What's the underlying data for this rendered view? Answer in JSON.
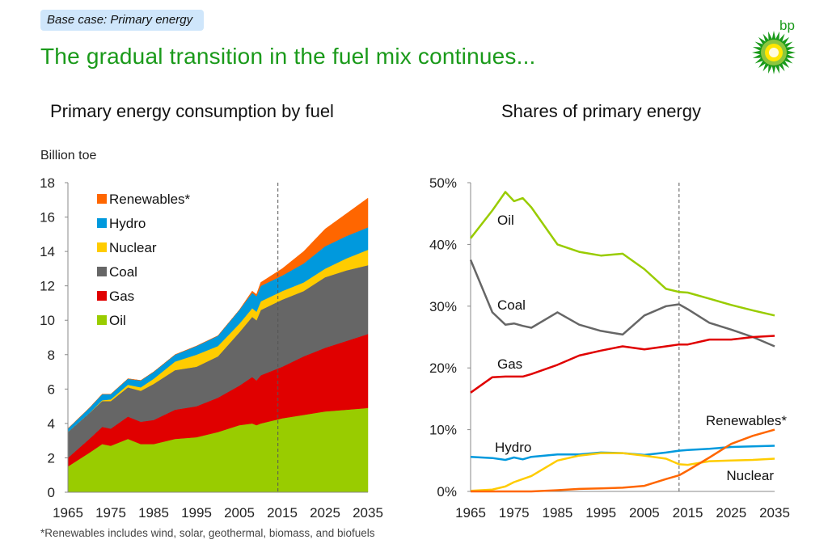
{
  "header": {
    "badge": "Base case: Primary energy",
    "title": "The gradual transition in the fuel mix continues...",
    "logo_text": "bp"
  },
  "footnote": "*Renewables includes wind, solar, geothermal, biomass, and biofuels",
  "colors": {
    "Oil": "#99cc00",
    "Gas": "#e00000",
    "Coal": "#666666",
    "Nuclear": "#ffcc00",
    "Hydro": "#0099dd",
    "Renewables*": "#ff6600",
    "title": "#1a9a1a"
  },
  "chart_data": [
    {
      "type": "area",
      "stacked": true,
      "title": "Primary energy consumption by fuel",
      "ylabel": "Billion toe",
      "xlabel": "",
      "xlim": [
        1965,
        2035
      ],
      "ylim": [
        0,
        18
      ],
      "xticks": [
        1965,
        1975,
        1985,
        1995,
        2005,
        2015,
        2025,
        2035
      ],
      "yticks": [
        0,
        2,
        4,
        6,
        8,
        10,
        12,
        14,
        16,
        18
      ],
      "projection_start": 2014,
      "legend_position": "top-left",
      "x": [
        1965,
        1970,
        1973,
        1975,
        1979,
        1982,
        1985,
        1990,
        1995,
        2000,
        2005,
        2008,
        2009,
        2010,
        2015,
        2020,
        2025,
        2030,
        2035
      ],
      "series": [
        {
          "name": "Oil",
          "values": [
            1.5,
            2.3,
            2.8,
            2.7,
            3.1,
            2.8,
            2.8,
            3.1,
            3.2,
            3.5,
            3.9,
            4.0,
            3.9,
            4.0,
            4.3,
            4.5,
            4.7,
            4.8,
            4.9
          ]
        },
        {
          "name": "Gas",
          "values": [
            0.5,
            0.8,
            1.0,
            1.0,
            1.3,
            1.3,
            1.4,
            1.7,
            1.8,
            2.0,
            2.3,
            2.7,
            2.6,
            2.8,
            3.0,
            3.4,
            3.7,
            4.0,
            4.3
          ]
        },
        {
          "name": "Coal",
          "values": [
            1.5,
            1.5,
            1.5,
            1.6,
            1.7,
            1.8,
            2.1,
            2.3,
            2.3,
            2.4,
            3.1,
            3.5,
            3.5,
            3.8,
            3.9,
            3.8,
            4.1,
            4.1,
            4.0
          ]
        },
        {
          "name": "Nuclear",
          "values": [
            0,
            0,
            0.05,
            0.1,
            0.15,
            0.2,
            0.3,
            0.5,
            0.7,
            0.6,
            0.5,
            0.5,
            0.5,
            0.5,
            0.5,
            0.5,
            0.5,
            0.7,
            0.9
          ]
        },
        {
          "name": "Hydro",
          "values": [
            0.2,
            0.3,
            0.35,
            0.3,
            0.35,
            0.4,
            0.4,
            0.4,
            0.5,
            0.6,
            0.8,
            0.9,
            0.9,
            0.9,
            0.9,
            1.1,
            1.3,
            1.3,
            1.3
          ]
        },
        {
          "name": "Renewables*",
          "values": [
            0,
            0,
            0,
            0,
            0,
            0,
            0,
            0,
            0,
            0,
            0,
            0.1,
            0.1,
            0.2,
            0.4,
            0.7,
            1.0,
            1.3,
            1.7
          ]
        }
      ]
    },
    {
      "type": "line",
      "title": "Shares of primary energy",
      "xlabel": "",
      "ylabel": "",
      "xlim": [
        1965,
        2035
      ],
      "ylim": [
        0,
        50
      ],
      "xticks": [
        1965,
        1975,
        1985,
        1995,
        2005,
        2015,
        2025,
        2035
      ],
      "yticks": [
        "0%",
        "10%",
        "20%",
        "30%",
        "40%",
        "50%"
      ],
      "projection_start": 2013,
      "legend_position": "inline labels",
      "x": [
        1965,
        1970,
        1973,
        1975,
        1977,
        1979,
        1985,
        1990,
        1995,
        2000,
        2005,
        2010,
        2013,
        2015,
        2020,
        2025,
        2030,
        2035
      ],
      "series": [
        {
          "name": "Oil",
          "label": "Oil",
          "values": [
            41,
            45.5,
            48.5,
            47,
            47.5,
            46,
            40,
            38.8,
            38.2,
            38.5,
            36,
            32.8,
            32.3,
            32.2,
            31.2,
            30.2,
            29.3,
            28.5
          ]
        },
        {
          "name": "Coal",
          "label": "Coal",
          "values": [
            37.5,
            29,
            27,
            27.2,
            26.8,
            26.5,
            29,
            27,
            26,
            25.4,
            28.5,
            30,
            30.3,
            29.5,
            27.3,
            26.2,
            25,
            23.5
          ]
        },
        {
          "name": "Gas",
          "label": "Gas",
          "values": [
            16,
            18.5,
            18.6,
            18.6,
            18.6,
            19,
            20.5,
            22,
            22.8,
            23.5,
            23,
            23.5,
            23.8,
            23.8,
            24.6,
            24.6,
            25,
            25.2
          ]
        },
        {
          "name": "Hydro",
          "label": "Hydro",
          "values": [
            5.6,
            5.4,
            5.1,
            5.5,
            5.2,
            5.6,
            6,
            6,
            6.3,
            6.2,
            5.9,
            6.3,
            6.6,
            6.7,
            6.9,
            7.2,
            7.3,
            7.4
          ]
        },
        {
          "name": "Nuclear",
          "label": "Nuclear",
          "values": [
            0.1,
            0.3,
            0.8,
            1.5,
            2,
            2.5,
            5,
            5.8,
            6.2,
            6.2,
            5.8,
            5.3,
            4.4,
            4.3,
            4.9,
            5,
            5.1,
            5.3
          ]
        },
        {
          "name": "Renewables*",
          "label": "Renewables*",
          "values": [
            0,
            0,
            0,
            0,
            0,
            0,
            0.2,
            0.4,
            0.5,
            0.6,
            0.9,
            2,
            2.6,
            3.4,
            5.5,
            7.7,
            9,
            10
          ]
        }
      ]
    }
  ]
}
